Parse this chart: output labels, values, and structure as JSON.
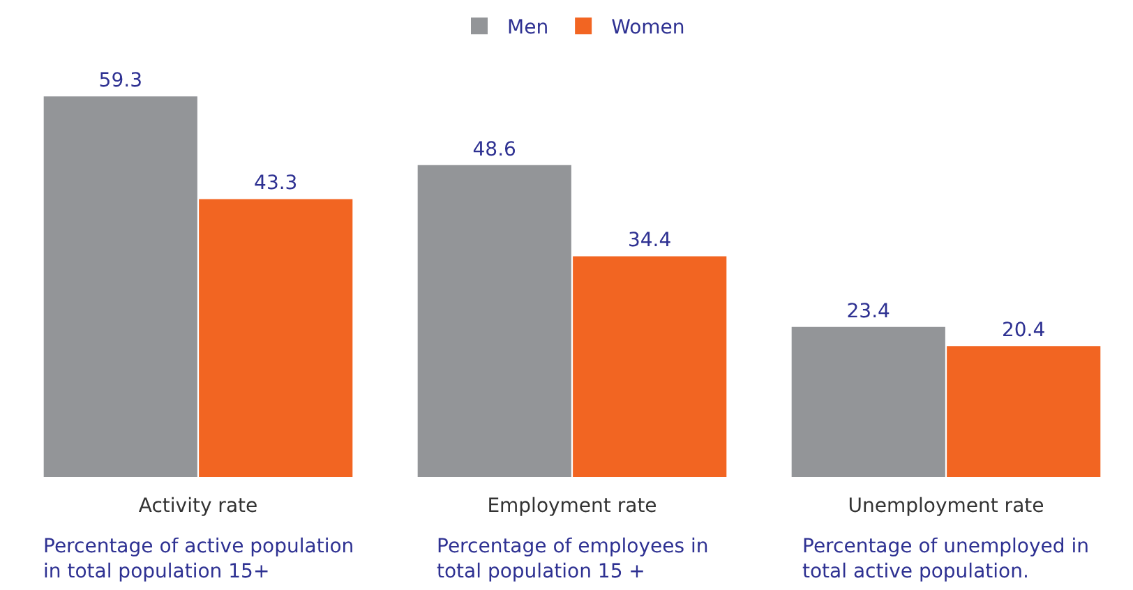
{
  "chart_data": {
    "type": "bar",
    "categories": [
      "Activity rate",
      "Employment rate",
      "Unemployment rate"
    ],
    "series": [
      {
        "name": "Men",
        "color": "#939598",
        "values": [
          59.3,
          48.6,
          23.4
        ]
      },
      {
        "name": "Women",
        "color": "#f26522",
        "values": [
          43.3,
          34.4,
          20.4
        ]
      }
    ],
    "data_labels": true,
    "legend": "top",
    "annotations": [
      "Percentage of active population in total population 15+",
      "Percentage of employees in total population 15 +",
      "Percentage of unemployed in total active population."
    ]
  }
}
